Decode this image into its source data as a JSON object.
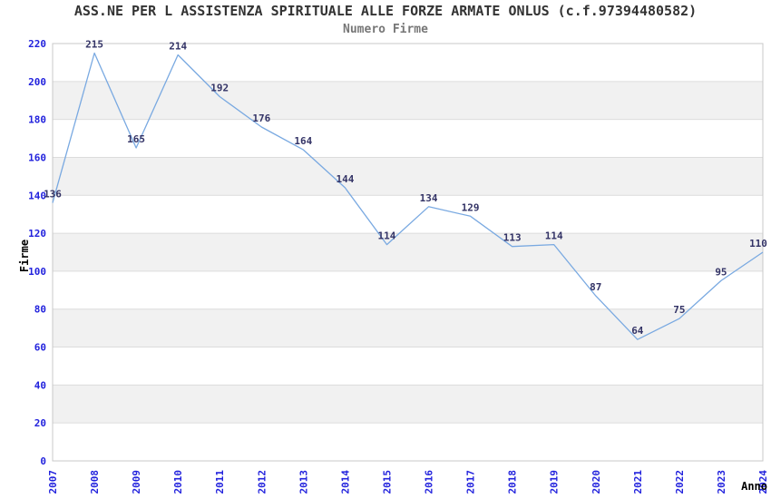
{
  "chart_data": {
    "type": "line",
    "title": "ASS.NE PER L ASSISTENZA SPIRITUALE ALLE FORZE ARMATE ONLUS (c.f.97394480582)",
    "subtitle": "Numero Firme",
    "xlabel": "Anno",
    "ylabel": "Firme",
    "categories": [
      "2007",
      "2008",
      "2009",
      "2010",
      "2011",
      "2012",
      "2013",
      "2014",
      "2015",
      "2016",
      "2017",
      "2018",
      "2019",
      "2020",
      "2021",
      "2022",
      "2023",
      "2024"
    ],
    "values": [
      136,
      215,
      165,
      214,
      192,
      176,
      164,
      144,
      114,
      134,
      129,
      113,
      114,
      87,
      64,
      75,
      95,
      110
    ],
    "ylim": [
      0,
      220
    ],
    "ytick_step": 20,
    "xtick_rotation_deg": -90,
    "legend": "none",
    "grid": "alternating horizontal bands every 20 units",
    "point_labels_shown": true,
    "colors": {
      "line": "#79a9e1",
      "tick_label": "#2222dd",
      "value_label": "#333366",
      "band": "#f1f1f1",
      "gridline": "#dcdcdc",
      "plot_border": "#c8c8c8",
      "title": "#333333",
      "subtitle": "#777777",
      "axis_title": "#000000",
      "background": "#ffffff"
    }
  }
}
